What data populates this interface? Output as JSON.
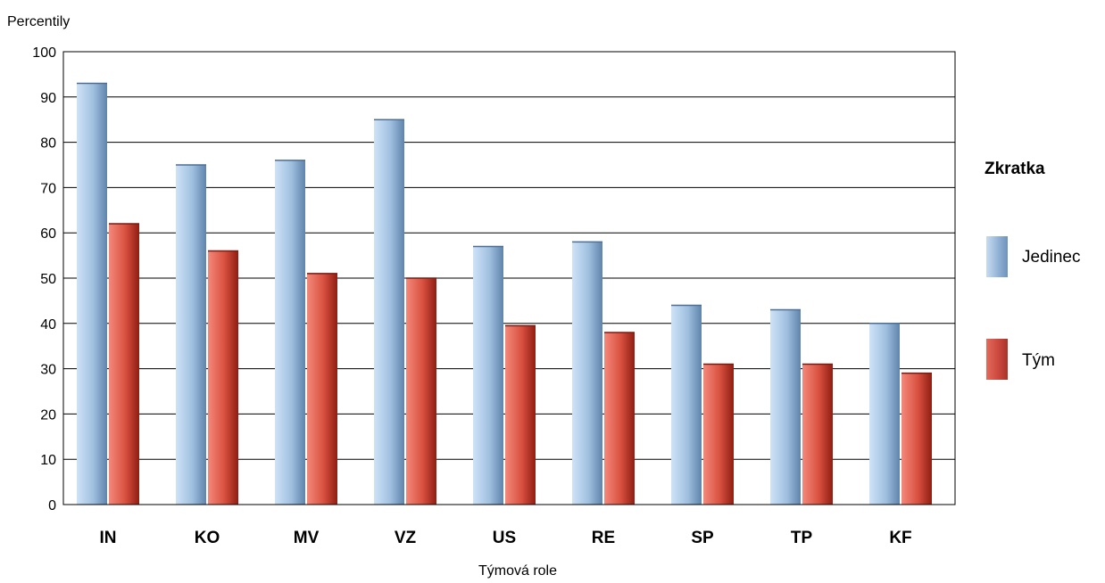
{
  "chart_data": {
    "type": "bar",
    "title": "",
    "ylabel": "Percentily",
    "xlabel": "Týmová role",
    "ylim": [
      0,
      100
    ],
    "yticks": [
      0,
      10,
      20,
      30,
      40,
      50,
      60,
      70,
      80,
      90,
      100
    ],
    "grid": true,
    "legend_title": "Zkratka",
    "legend_position": "right",
    "categories": [
      "IN",
      "KO",
      "MV",
      "VZ",
      "US",
      "RE",
      "SP",
      "TP",
      "KF"
    ],
    "series": [
      {
        "name": "Jedinec",
        "color": "#8fafd3",
        "values": [
          93,
          75,
          76,
          85,
          57,
          58,
          44,
          43,
          40
        ]
      },
      {
        "name": "Tým",
        "color": "#c9463d",
        "values": [
          62,
          56,
          51,
          50,
          39.5,
          38,
          31,
          31,
          29
        ]
      }
    ]
  }
}
